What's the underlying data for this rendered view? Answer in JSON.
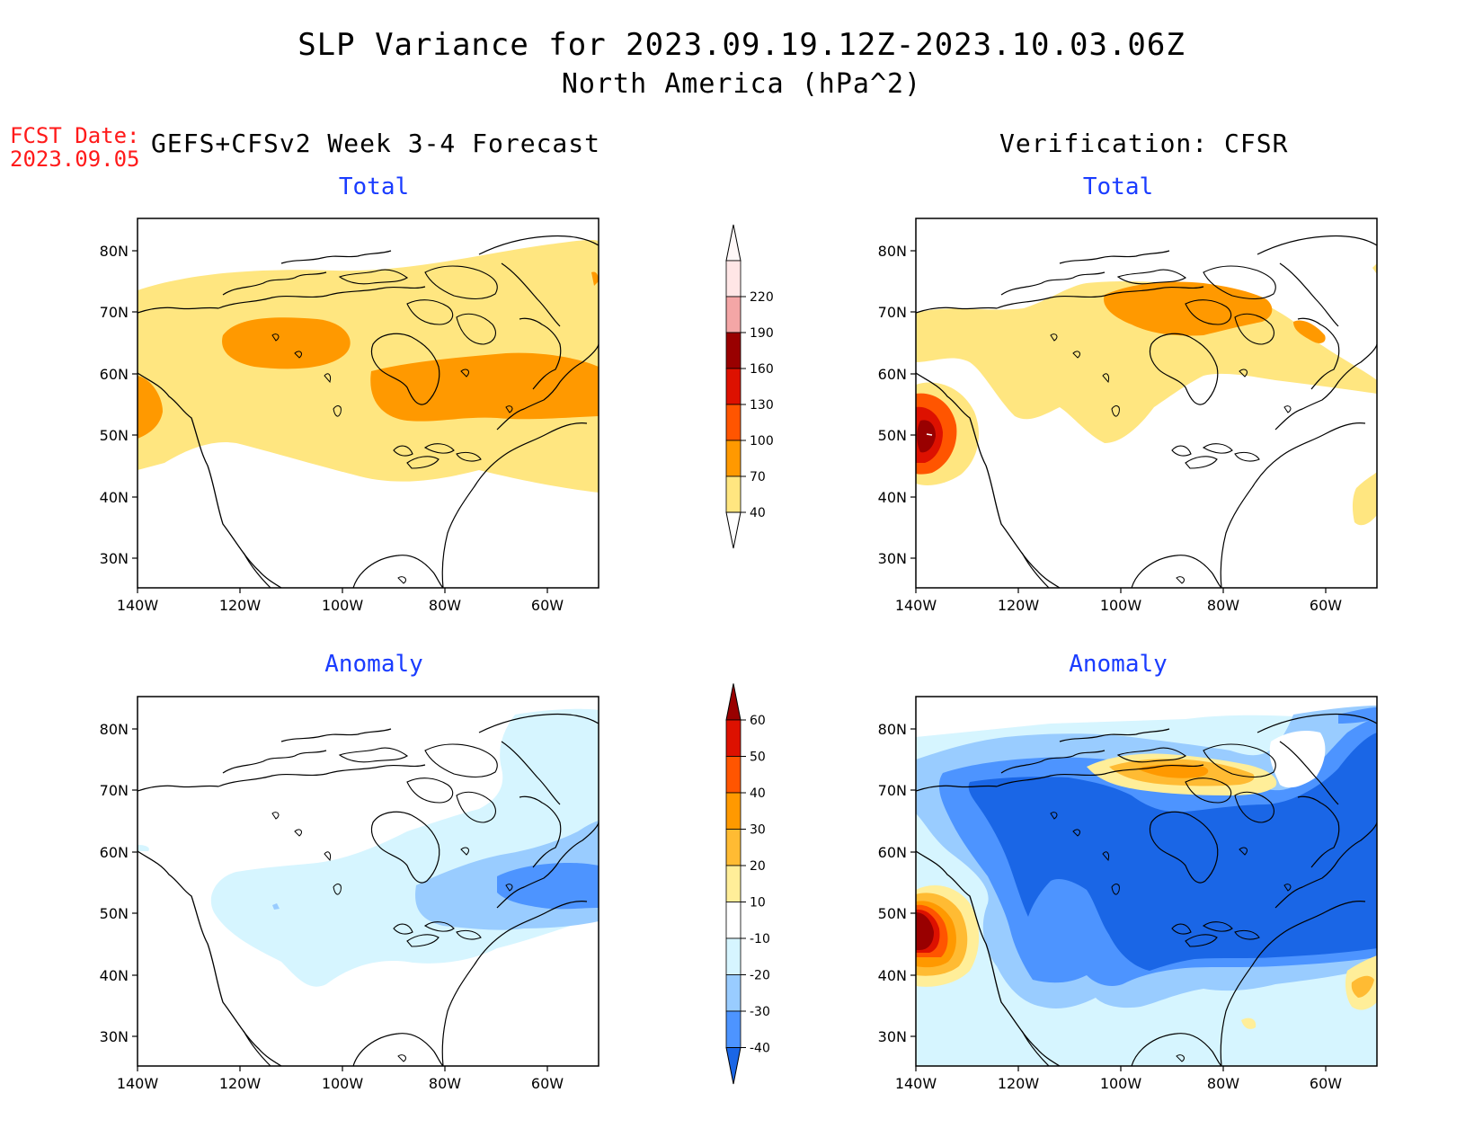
{
  "title": "SLP Variance for 2023.09.19.12Z-2023.10.03.06Z",
  "subtitle": "North America (hPa^2)",
  "fcst_date_label": "FCST Date:",
  "fcst_date_value": "2023.09.05",
  "left_heading": "GEFS+CFSv2 Week 3-4 Forecast",
  "right_heading": "Verification: CFSR",
  "panels": [
    {
      "title": "Total"
    },
    {
      "title": "Total"
    },
    {
      "title": "Anomaly"
    },
    {
      "title": "Anomaly"
    }
  ],
  "axes": {
    "lat_ticks": [
      "80N",
      "70N",
      "60N",
      "50N",
      "40N",
      "30N"
    ],
    "lon_ticks": [
      "140W",
      "120W",
      "100W",
      "80W",
      "60W"
    ]
  },
  "colorbar_total": {
    "levels": [
      "220",
      "190",
      "160",
      "130",
      "100",
      "70",
      "40"
    ],
    "colors": [
      "#ffe6e6",
      "#f4a6a6",
      "#990000",
      "#dd1100",
      "#ff5500",
      "#ff9900",
      "#ffe680"
    ]
  },
  "colorbar_anomaly": {
    "levels": [
      "60",
      "50",
      "40",
      "30",
      "20",
      "10",
      "-10",
      "-20",
      "-30",
      "-40"
    ],
    "colors": [
      "#990000",
      "#dd1100",
      "#ff5500",
      "#ff9900",
      "#ffbb33",
      "#ffee99",
      "#ffffff",
      "#d6f5ff",
      "#99ccff",
      "#4d94ff",
      "#1a66e6"
    ]
  },
  "colors": {
    "title_text": "#000000",
    "fcst_text": "#ff1a1a",
    "panel_title": "#1a3cff"
  }
}
